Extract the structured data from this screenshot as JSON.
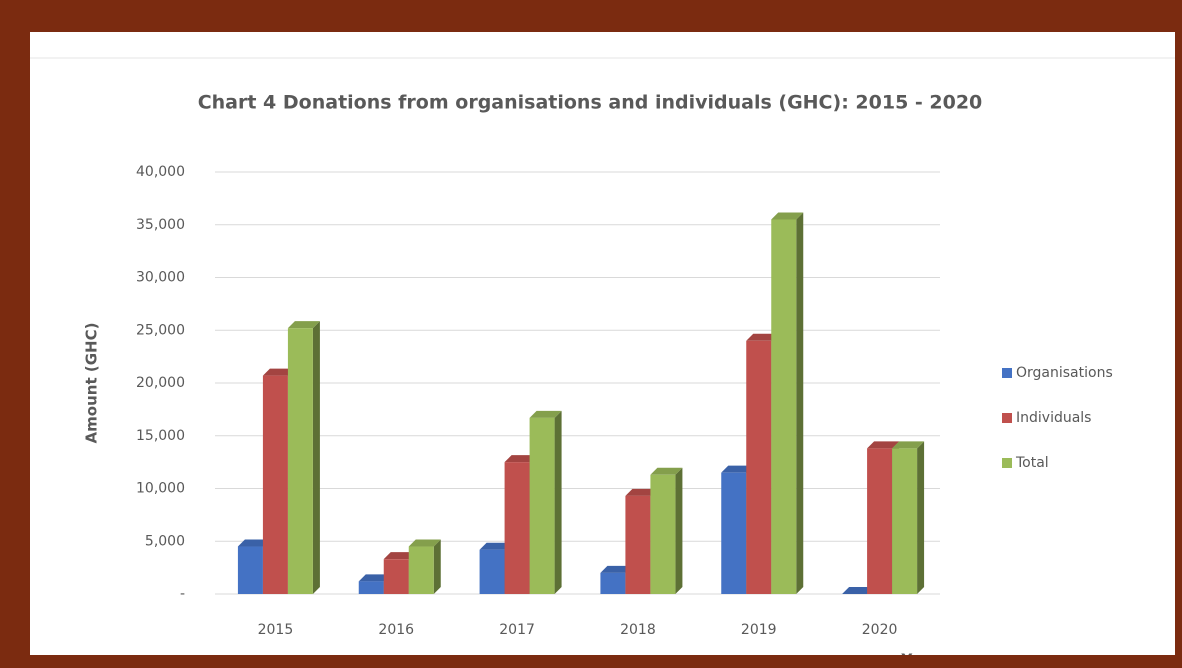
{
  "chart_data": {
    "type": "bar",
    "title": "Chart 4  Donations from organisations and individuals (GHC): 2015 - 2020",
    "y_label": "Amount (GHC)",
    "x_label": "Year",
    "categories": [
      "2015",
      "2016",
      "2017",
      "2018",
      "2019",
      "2020"
    ],
    "series": [
      {
        "name": "Organisations",
        "color": "#4472c4",
        "values": [
          4500,
          1200,
          4200,
          2000,
          11500,
          0
        ]
      },
      {
        "name": "Individuals",
        "color": "#c0504d",
        "values": [
          20700,
          3300,
          12500,
          9300,
          24000,
          13800
        ]
      },
      {
        "name": "Total",
        "color": "#9bbb59",
        "values": [
          25200,
          4500,
          16700,
          11300,
          35500,
          13800
        ]
      }
    ],
    "ylim": [
      0,
      40000
    ],
    "yticks": [
      {
        "value": 0,
        "label": "-"
      },
      {
        "value": 5000,
        "label": "5,000"
      },
      {
        "value": 10000,
        "label": "10,000"
      },
      {
        "value": 15000,
        "label": "15,000"
      },
      {
        "value": 20000,
        "label": "20,000"
      },
      {
        "value": 25000,
        "label": "25,000"
      },
      {
        "value": 30000,
        "label": "30,000"
      },
      {
        "value": 35000,
        "label": "35,000"
      },
      {
        "value": 40000,
        "label": "40,000"
      }
    ],
    "grid": true,
    "legend": "right"
  }
}
